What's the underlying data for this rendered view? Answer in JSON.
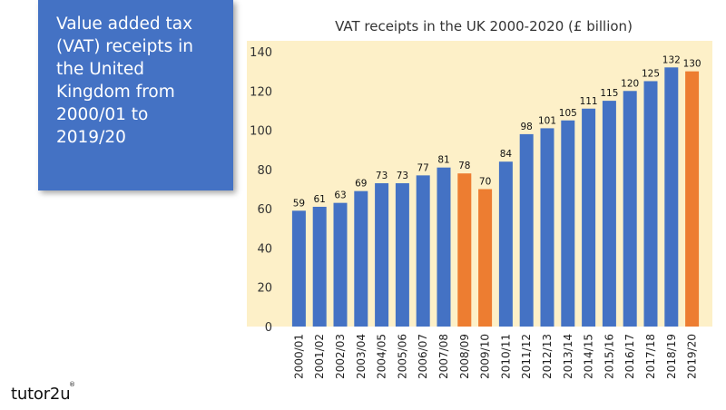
{
  "slide": {
    "heading": "Value added tax\n(VAT) receipts in\nthe United\nKingdom from\n2000/01 to\n2019/20",
    "logo_text": "tutor2u",
    "logo_mark": "®"
  },
  "colors": {
    "bar_blue": "#4472c4",
    "bar_orange": "#ed7d31",
    "plot_background": "#fdf0c8",
    "title_box": "#4472c4"
  },
  "chart_data": {
    "type": "bar",
    "title": "VAT receipts in the UK 2000-2020 (£ billion)",
    "categories": [
      "2000/01",
      "2001/02",
      "2002/03",
      "2003/04",
      "2004/05",
      "2005/06",
      "2006/07",
      "2007/08",
      "2008/09",
      "2009/10",
      "2010/11",
      "2011/12",
      "2012/13",
      "2013/14",
      "2014/15",
      "2015/16",
      "2016/17",
      "2017/18",
      "2018/19",
      "2019/20"
    ],
    "values": [
      59,
      61,
      63,
      69,
      73,
      73,
      77,
      81,
      78,
      70,
      84,
      98,
      101,
      105,
      111,
      115,
      120,
      125,
      132,
      130
    ],
    "highlighted": [
      "2008/09",
      "2009/10",
      "2019/20"
    ],
    "data_labels": [
      "59",
      "61",
      "63",
      "69",
      "73",
      "73",
      "77",
      "81",
      "78",
      "70",
      "84",
      "98",
      "101",
      "105",
      "111",
      "115",
      "120",
      "125",
      "132",
      "130"
    ],
    "yticks": [
      "0",
      "20",
      "40",
      "60",
      "80",
      "100",
      "120",
      "140"
    ],
    "ytick_values": [
      0,
      20,
      40,
      60,
      80,
      100,
      120,
      140
    ],
    "ylim": [
      0,
      140
    ],
    "xlabel": "",
    "ylabel": "",
    "grid": false,
    "legend": "none",
    "x_label_orientation": "vertical"
  }
}
